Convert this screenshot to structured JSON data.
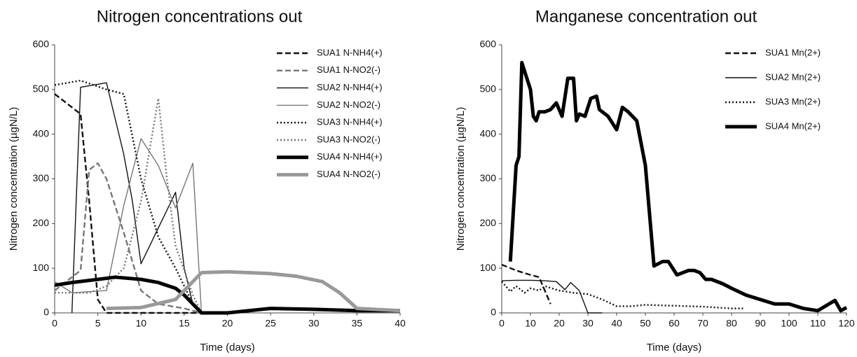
{
  "chart_data": [
    {
      "type": "line",
      "title": "Nitrogen concentrations out",
      "x_label": "Time (days)",
      "y_label": "Nitrogen concentration (µgN/L)",
      "xlim": [
        0,
        40
      ],
      "xticks": [
        0,
        5,
        10,
        15,
        20,
        25,
        30,
        35,
        40
      ],
      "ylim": [
        0,
        600
      ],
      "yticks": [
        0,
        100,
        200,
        300,
        400,
        500,
        600
      ],
      "grid": false,
      "legend": "top-right",
      "series": [
        {
          "name": "SUA1 N-NH4(+)",
          "color": "#111111",
          "style": "dashed",
          "weight": "medium",
          "x": [
            0,
            3,
            4,
            5,
            6,
            17
          ],
          "values": [
            490,
            445,
            250,
            30,
            0,
            0
          ]
        },
        {
          "name": "SUA1 N-NO2(-)",
          "color": "#777777",
          "style": "dashed",
          "weight": "medium",
          "x": [
            0,
            3,
            4,
            5,
            6,
            8,
            10,
            12,
            15,
            17
          ],
          "values": [
            50,
            95,
            320,
            335,
            300,
            180,
            50,
            20,
            10,
            0
          ]
        },
        {
          "name": "SUA2 N-NH4(+)",
          "color": "#111111",
          "style": "solid",
          "weight": "thin",
          "x": [
            2,
            3,
            6,
            8,
            9,
            10,
            14,
            15,
            16,
            17
          ],
          "values": [
            0,
            505,
            515,
            355,
            250,
            110,
            270,
            100,
            20,
            0
          ]
        },
        {
          "name": "SUA2 N-NO2(-)",
          "color": "#777777",
          "style": "solid",
          "weight": "thin",
          "x": [
            0,
            2,
            6,
            8,
            10,
            12,
            14,
            16,
            17,
            20
          ],
          "values": [
            70,
            45,
            50,
            240,
            390,
            330,
            235,
            335,
            0,
            0
          ]
        },
        {
          "name": "SUA3 N-NH4(+)",
          "color": "#111111",
          "style": "dotted",
          "weight": "medium",
          "x": [
            0,
            3,
            6,
            8,
            10,
            12,
            14,
            16,
            17
          ],
          "values": [
            510,
            520,
            500,
            490,
            300,
            170,
            100,
            20,
            0
          ]
        },
        {
          "name": "SUA3 N-NO2(-)",
          "color": "#777777",
          "style": "dotted",
          "weight": "medium",
          "x": [
            0,
            4,
            6,
            8,
            10,
            12,
            13,
            14,
            16,
            17
          ],
          "values": [
            45,
            45,
            60,
            100,
            250,
            480,
            300,
            150,
            40,
            0
          ]
        },
        {
          "name": "SUA4 N-NH4(+)",
          "color": "#000000",
          "style": "solid",
          "weight": "thick",
          "x": [
            0,
            2,
            5,
            7,
            10,
            12,
            14,
            15,
            16,
            17,
            20,
            25,
            30,
            35,
            40
          ],
          "values": [
            62,
            68,
            75,
            80,
            75,
            68,
            55,
            40,
            20,
            0,
            0,
            10,
            8,
            5,
            5
          ]
        },
        {
          "name": "SUA4 N-NO2(-)",
          "color": "#999999",
          "style": "solid",
          "weight": "thick",
          "x": [
            6,
            10,
            14,
            17,
            20,
            25,
            28,
            31,
            33,
            35,
            40
          ],
          "values": [
            10,
            12,
            30,
            90,
            92,
            88,
            82,
            70,
            45,
            10,
            5
          ]
        }
      ]
    },
    {
      "type": "line",
      "title": "Manganese concentration out",
      "x_label": "Time (days)",
      "y_label": "Nitrogen concentration (µgN/L)",
      "xlim": [
        0,
        120
      ],
      "xticks": [
        0,
        10,
        20,
        30,
        40,
        50,
        60,
        70,
        80,
        90,
        100,
        110,
        120
      ],
      "ylim": [
        0,
        600
      ],
      "yticks": [
        0,
        100,
        200,
        300,
        400,
        500,
        600
      ],
      "grid": false,
      "legend": "top-right",
      "series": [
        {
          "name": "SUA1 Mn(2+)",
          "color": "#111111",
          "style": "dashed",
          "weight": "medium",
          "x": [
            0,
            5,
            10,
            13,
            17
          ],
          "values": [
            108,
            95,
            85,
            80,
            20
          ]
        },
        {
          "name": "SUA2 Mn(2+)",
          "color": "#111111",
          "style": "solid",
          "weight": "thin",
          "x": [
            0,
            5,
            10,
            15,
            19,
            22,
            24,
            27,
            30,
            35
          ],
          "values": [
            72,
            73,
            73,
            72,
            70,
            52,
            68,
            50,
            0,
            0
          ]
        },
        {
          "name": "SUA3 Mn(2+)",
          "color": "#111111",
          "style": "dotted",
          "weight": "medium",
          "x": [
            0,
            3,
            5,
            8,
            10,
            13,
            15,
            20,
            25,
            30,
            35,
            40,
            45,
            50,
            60,
            70,
            80,
            84
          ],
          "values": [
            70,
            48,
            60,
            45,
            55,
            50,
            60,
            50,
            45,
            42,
            30,
            15,
            15,
            18,
            16,
            14,
            10,
            10
          ]
        },
        {
          "name": "SUA4 Mn(2+)",
          "color": "#000000",
          "style": "solid",
          "weight": "thick",
          "x": [
            3,
            5,
            6,
            7,
            10,
            11,
            12,
            13,
            15,
            17,
            19,
            21,
            23,
            25,
            26,
            27,
            29,
            31,
            33,
            34,
            37,
            40,
            42,
            44,
            47,
            50,
            53,
            56,
            58,
            61,
            63,
            65,
            67,
            69,
            71,
            73,
            77,
            80,
            85,
            90,
            95,
            100,
            105,
            110,
            116,
            118,
            120
          ],
          "values": [
            115,
            330,
            350,
            560,
            500,
            440,
            430,
            450,
            450,
            455,
            470,
            440,
            525,
            525,
            430,
            445,
            440,
            480,
            485,
            455,
            440,
            410,
            460,
            450,
            430,
            330,
            105,
            115,
            115,
            85,
            90,
            95,
            95,
            90,
            75,
            75,
            65,
            55,
            40,
            30,
            20,
            20,
            10,
            5,
            28,
            5,
            12
          ]
        }
      ]
    }
  ]
}
